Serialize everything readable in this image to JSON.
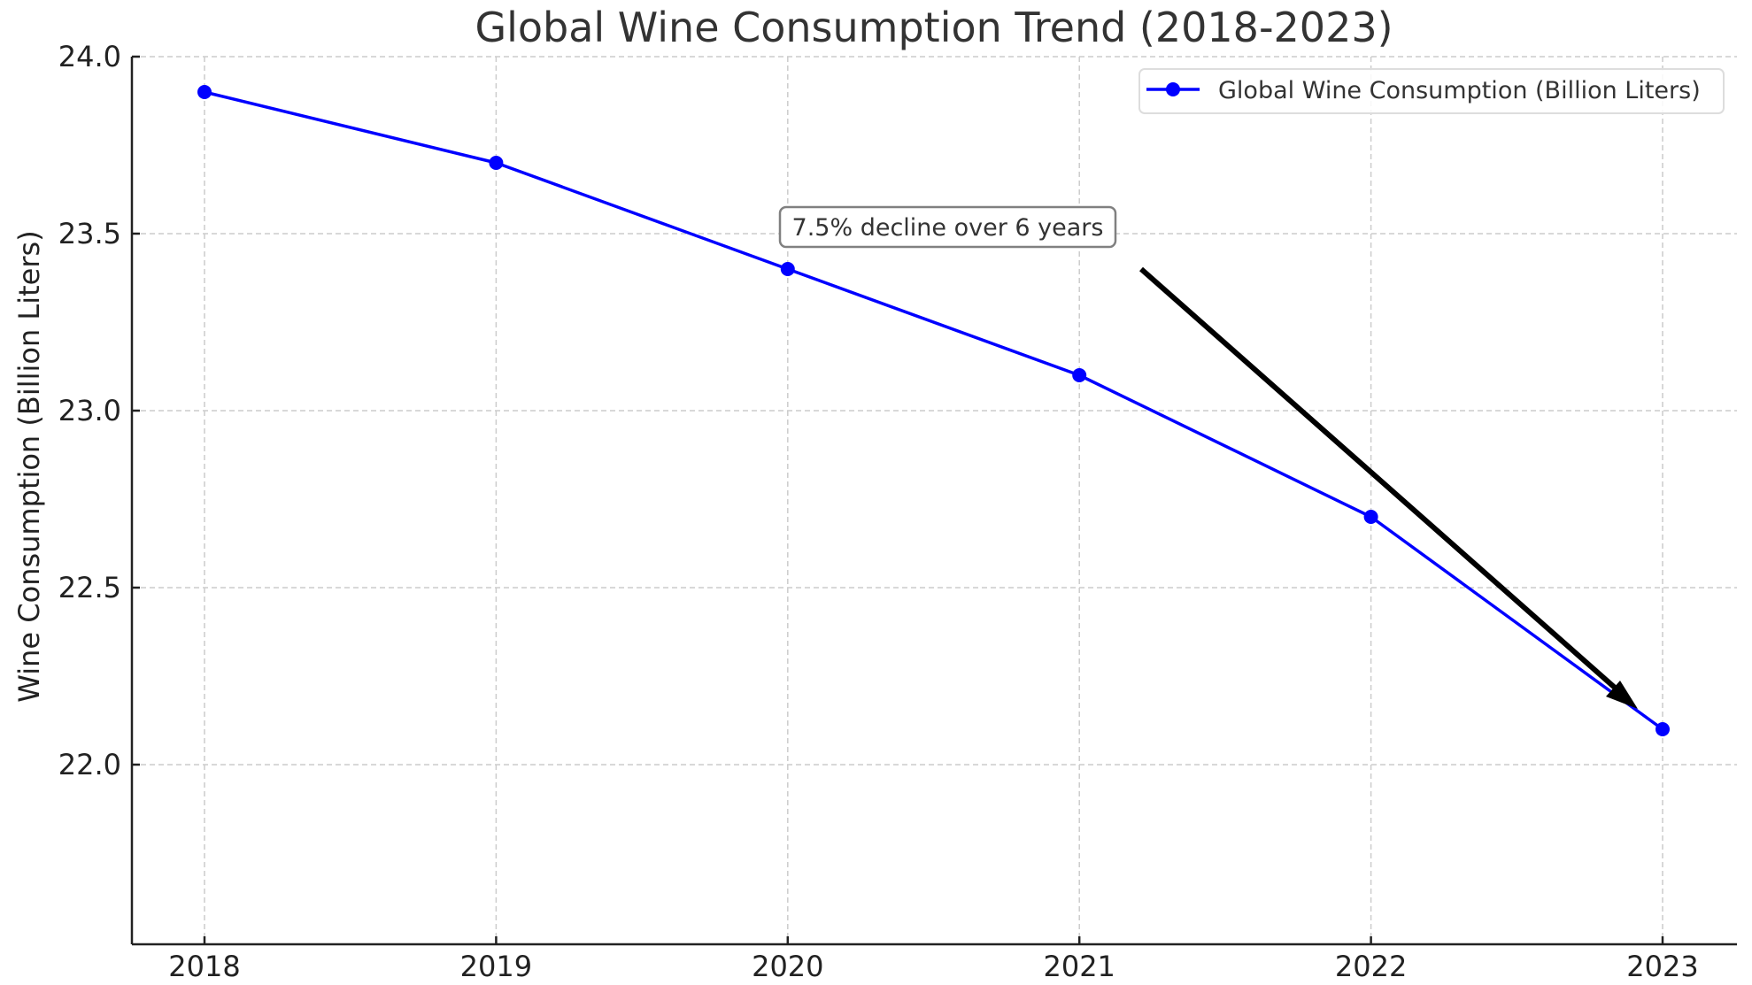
{
  "chart_data": {
    "type": "line",
    "title": "Global Wine Consumption Trend (2018-2023)",
    "xlabel": "",
    "ylabel": "Wine Consumption (Billion Liters)",
    "categories": [
      "2018",
      "2019",
      "2020",
      "2021",
      "2022",
      "2023"
    ],
    "series": [
      {
        "name": "Global Wine Consumption (Billion Liters)",
        "values": [
          23.9,
          23.7,
          23.4,
          23.1,
          22.7,
          22.1
        ],
        "color": "#0000ff",
        "marker": "circle"
      }
    ],
    "ylim": [
      21.5,
      24.0
    ],
    "yticks": [
      "22.0",
      "22.5",
      "23.0",
      "23.5",
      "24.0"
    ],
    "grid": true,
    "legend_position": "upper right",
    "annotations": [
      {
        "text": "7.5% decline over 6 years",
        "arrow_from": {
          "x": 2021.2,
          "y": 23.4
        },
        "arrow_to": {
          "x": 2022.9,
          "y": 22.17
        },
        "arrow_color": "#000000"
      }
    ]
  },
  "colors": {
    "series": "#0000ff",
    "grid": "#cccccc",
    "axis": "#222222",
    "annotation_border": "#808080"
  }
}
